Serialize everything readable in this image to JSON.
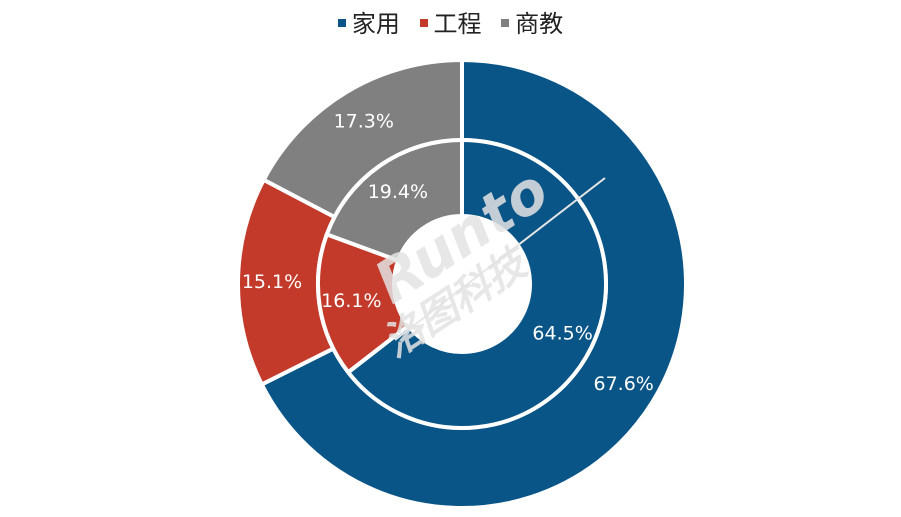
{
  "chart_data": {
    "type": "pie",
    "variant": "nested-donut",
    "categories": [
      "家用",
      "工程",
      "商教"
    ],
    "colors": [
      "#0a5587",
      "#c33a2b",
      "#808080"
    ],
    "series": [
      {
        "ring": "outer",
        "values": [
          67.6,
          15.1,
          17.3
        ],
        "labels": [
          "67.6%",
          "15.1%",
          "17.3%"
        ]
      },
      {
        "ring": "inner",
        "values": [
          64.5,
          16.1,
          19.4
        ],
        "labels": [
          "64.5%",
          "16.1%",
          "19.4%"
        ]
      }
    ],
    "legend_position": "top"
  },
  "watermark": {
    "brand": "Runto",
    "name": "洛图科技"
  }
}
